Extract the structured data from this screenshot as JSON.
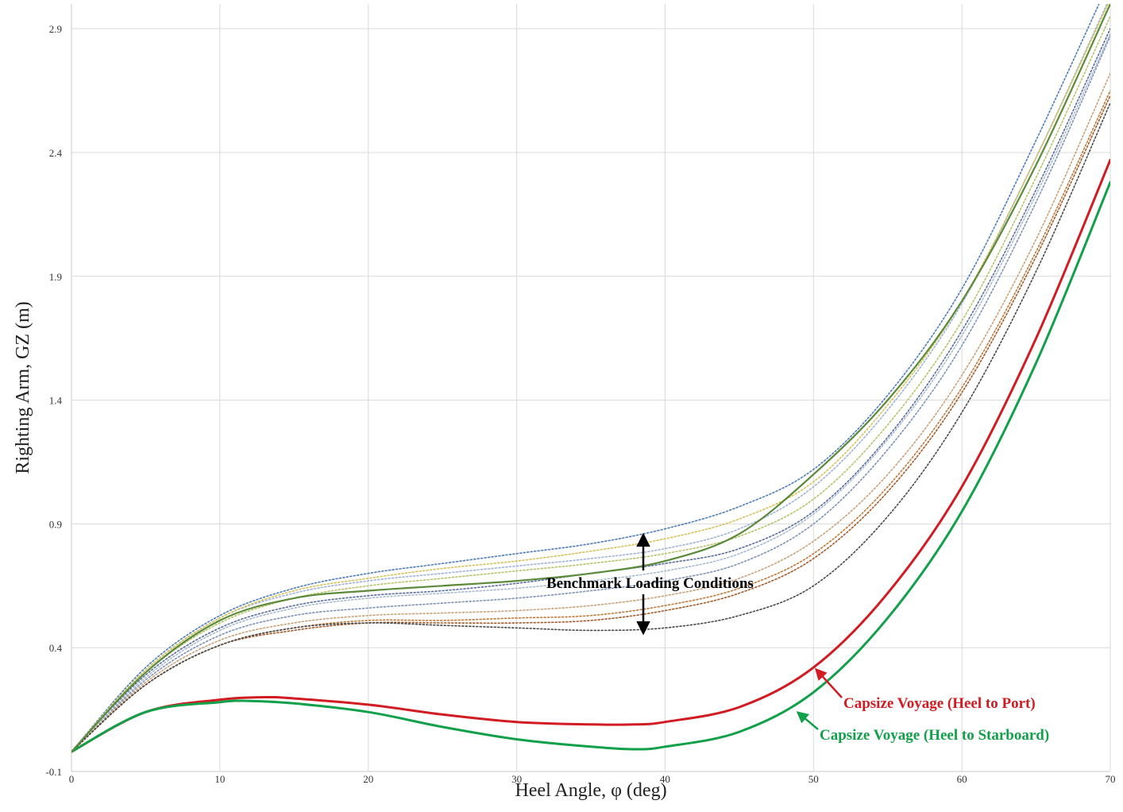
{
  "chart_data": {
    "type": "line",
    "title": "",
    "xlabel": "Heel Angle, φ (deg)",
    "ylabel": "Righting Arm, GZ (m)",
    "xlim": [
      0,
      70
    ],
    "ylim": [
      -0.1,
      3.0
    ],
    "xticks": [
      0,
      10,
      20,
      30,
      40,
      50,
      60,
      70
    ],
    "xtick_labels": [
      "0",
      "10",
      "20",
      "30",
      "40",
      "50",
      "60",
      "70"
    ],
    "yticks": [
      -0.1,
      0.4,
      0.9,
      1.4,
      1.9,
      2.4,
      2.9
    ],
    "ytick_labels": [
      "-0.1",
      "0.4",
      "0.9",
      "1.4",
      "1.9",
      "2.4",
      "2.9"
    ],
    "grid": true,
    "annotations": {
      "benchmark": "Benchmark Loading Conditions",
      "port": "Capsize Voyage (Heel to Port)",
      "starboard": "Capsize Voyage (Heel to Starboard)"
    },
    "series": [
      {
        "name": "Capsize Voyage (Heel to Port)",
        "style": "solid",
        "color": "#d01c22",
        "x": [
          0,
          5,
          10,
          13,
          15,
          20,
          25,
          30,
          35,
          38,
          40,
          45,
          50,
          55,
          60,
          65,
          70
        ],
        "y": [
          -0.02,
          0.14,
          0.19,
          0.2,
          0.195,
          0.17,
          0.13,
          0.1,
          0.09,
          0.09,
          0.1,
          0.16,
          0.32,
          0.62,
          1.05,
          1.65,
          2.37
        ]
      },
      {
        "name": "Capsize Voyage (Heel to Starboard)",
        "style": "solid",
        "color": "#12a04a",
        "x": [
          0,
          5,
          10,
          12,
          15,
          20,
          25,
          30,
          35,
          38,
          40,
          45,
          50,
          55,
          60,
          65,
          70
        ],
        "y": [
          -0.02,
          0.14,
          0.18,
          0.185,
          0.175,
          0.14,
          0.08,
          0.03,
          0.0,
          -0.01,
          0.0,
          0.06,
          0.22,
          0.52,
          0.95,
          1.55,
          2.28
        ]
      },
      {
        "style": "solid",
        "color": "#5b8a3a",
        "x": [
          0,
          5,
          10,
          15,
          20,
          25,
          30,
          35,
          40,
          45,
          50,
          55,
          60,
          65,
          70
        ],
        "y": [
          -0.02,
          0.3,
          0.51,
          0.6,
          0.63,
          0.65,
          0.67,
          0.7,
          0.75,
          0.86,
          1.1,
          1.4,
          1.8,
          2.35,
          3.0
        ]
      },
      {
        "style": "dotted",
        "color": "#4f7db8",
        "x": [
          0,
          5,
          10,
          15,
          20,
          25,
          30,
          35,
          40,
          45,
          50,
          55,
          60,
          65,
          70
        ],
        "y": [
          -0.02,
          0.32,
          0.53,
          0.64,
          0.7,
          0.74,
          0.78,
          0.82,
          0.88,
          0.97,
          1.12,
          1.42,
          1.85,
          2.45,
          3.1
        ]
      },
      {
        "style": "dotted",
        "color": "#9fb3d6",
        "x": [
          0,
          5,
          10,
          15,
          20,
          25,
          30,
          35,
          40,
          45,
          50,
          55,
          60,
          65,
          70
        ],
        "y": [
          -0.02,
          0.31,
          0.52,
          0.62,
          0.67,
          0.7,
          0.73,
          0.76,
          0.8,
          0.88,
          1.05,
          1.36,
          1.79,
          2.38,
          3.03
        ]
      },
      {
        "style": "dotted",
        "color": "#d6c15a",
        "x": [
          0,
          5,
          10,
          15,
          20,
          25,
          30,
          35,
          40,
          45,
          50,
          55,
          60,
          65,
          70
        ],
        "y": [
          -0.02,
          0.31,
          0.52,
          0.63,
          0.68,
          0.72,
          0.75,
          0.79,
          0.84,
          0.92,
          1.07,
          1.38,
          1.8,
          2.38,
          3.02
        ]
      },
      {
        "style": "dotted",
        "color": "#b5c46a",
        "x": [
          0,
          5,
          10,
          15,
          20,
          25,
          30,
          35,
          40,
          45,
          50,
          55,
          60,
          65,
          70
        ],
        "y": [
          -0.02,
          0.3,
          0.5,
          0.6,
          0.65,
          0.68,
          0.71,
          0.74,
          0.78,
          0.85,
          1.0,
          1.3,
          1.72,
          2.3,
          2.95
        ]
      },
      {
        "style": "dotted",
        "color": "#5a6e9c",
        "x": [
          0,
          5,
          10,
          15,
          20,
          25,
          30,
          35,
          40,
          45,
          50,
          55,
          60,
          65,
          70
        ],
        "y": [
          -0.02,
          0.29,
          0.48,
          0.57,
          0.61,
          0.63,
          0.66,
          0.7,
          0.74,
          0.8,
          0.95,
          1.25,
          1.68,
          2.25,
          2.9
        ]
      },
      {
        "style": "dotted",
        "color": "#7f93b8",
        "x": [
          0,
          5,
          10,
          15,
          20,
          25,
          30,
          35,
          40,
          45,
          50,
          55,
          60,
          65,
          70
        ],
        "y": [
          -0.02,
          0.27,
          0.45,
          0.53,
          0.56,
          0.58,
          0.6,
          0.63,
          0.67,
          0.74,
          0.9,
          1.2,
          1.62,
          2.2,
          2.87
        ]
      },
      {
        "style": "dotted",
        "color": "#a8bad0",
        "x": [
          0,
          5,
          10,
          15,
          20,
          25,
          30,
          35,
          40,
          45,
          50,
          55,
          60,
          65,
          70
        ],
        "y": [
          -0.02,
          0.28,
          0.47,
          0.56,
          0.6,
          0.62,
          0.64,
          0.67,
          0.71,
          0.78,
          0.94,
          1.24,
          1.66,
          2.23,
          2.88
        ]
      },
      {
        "style": "dotted",
        "color": "#c9a27a",
        "x": [
          0,
          5,
          10,
          15,
          20,
          25,
          30,
          35,
          40,
          45,
          50,
          55,
          60,
          65,
          70
        ],
        "y": [
          -0.02,
          0.26,
          0.43,
          0.5,
          0.53,
          0.54,
          0.55,
          0.57,
          0.61,
          0.68,
          0.83,
          1.1,
          1.5,
          2.05,
          2.72
        ]
      },
      {
        "style": "dotted",
        "color": "#c07a3a",
        "x": [
          0,
          5,
          10,
          15,
          20,
          25,
          30,
          35,
          40,
          45,
          50,
          55,
          60,
          65,
          70
        ],
        "y": [
          -0.02,
          0.25,
          0.41,
          0.48,
          0.51,
          0.51,
          0.52,
          0.53,
          0.57,
          0.64,
          0.78,
          1.05,
          1.45,
          2.0,
          2.65
        ]
      },
      {
        "style": "dotted",
        "color": "#a35a2a",
        "x": [
          0,
          5,
          10,
          15,
          20,
          25,
          30,
          35,
          40,
          45,
          50,
          55,
          60,
          65,
          70
        ],
        "y": [
          -0.02,
          0.25,
          0.41,
          0.47,
          0.5,
          0.5,
          0.5,
          0.51,
          0.55,
          0.62,
          0.76,
          1.03,
          1.43,
          1.98,
          2.63
        ]
      },
      {
        "style": "dotted",
        "color": "#4a4a4a",
        "x": [
          0,
          5,
          10,
          15,
          20,
          25,
          30,
          35,
          40,
          45,
          50,
          55,
          60,
          65,
          70
        ],
        "y": [
          -0.02,
          0.25,
          0.41,
          0.48,
          0.5,
          0.49,
          0.48,
          0.47,
          0.48,
          0.53,
          0.65,
          0.93,
          1.35,
          1.92,
          2.6
        ]
      }
    ]
  }
}
